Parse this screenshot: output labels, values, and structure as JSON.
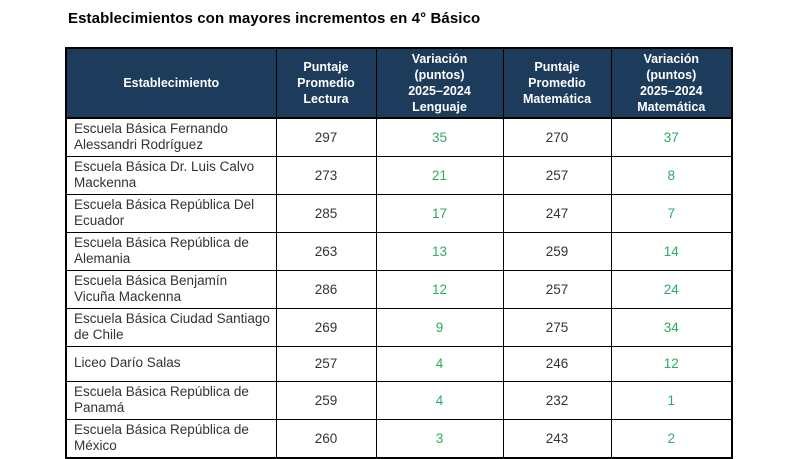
{
  "title": "Establecimientos con mayores incrementos en 4° Básico",
  "colors": {
    "header_bg": "#1d3b5a",
    "header_text": "#ffffff",
    "positive_value": "#2eab63",
    "body_text": "#333333",
    "border": "#000000",
    "background": "#ffffff"
  },
  "chart_data": {
    "type": "table",
    "title": "Establecimientos con mayores incrementos en 4° Básico",
    "columns": [
      "Establecimiento",
      "Puntaje Promedio Lectura",
      "Variación (puntos) 2025–2024 Lenguaje",
      "Puntaje Promedio Matemática",
      "Variación (puntos) 2025–2024 Matemática"
    ],
    "column_display": [
      "Establecimiento",
      "Puntaje\nPromedio\nLectura",
      "Variación\n(puntos)\n2025–2024\nLenguaje",
      "Puntaje\nPromedio\nMatemática",
      "Variación\n(puntos)\n2025–2024\nMatemática"
    ],
    "positive_value_columns": [
      "Variación (puntos) 2025–2024 Lenguaje",
      "Variación (puntos) 2025–2024 Matemática"
    ],
    "rows": [
      {
        "establecimiento": "Escuela Básica Fernando Alessandri Rodríguez",
        "puntaje_lectura": 297,
        "variacion_lenguaje": 35,
        "puntaje_matematica": 270,
        "variacion_matematica": 37
      },
      {
        "establecimiento": "Escuela Básica Dr. Luis Calvo Mackenna",
        "puntaje_lectura": 273,
        "variacion_lenguaje": 21,
        "puntaje_matematica": 257,
        "variacion_matematica": 8
      },
      {
        "establecimiento": "Escuela Básica República Del Ecuador",
        "puntaje_lectura": 285,
        "variacion_lenguaje": 17,
        "puntaje_matematica": 247,
        "variacion_matematica": 7
      },
      {
        "establecimiento": "Escuela Básica República de Alemania",
        "puntaje_lectura": 263,
        "variacion_lenguaje": 13,
        "puntaje_matematica": 259,
        "variacion_matematica": 14
      },
      {
        "establecimiento": "Escuela Básica Benjamín Vicuña Mackenna",
        "puntaje_lectura": 286,
        "variacion_lenguaje": 12,
        "puntaje_matematica": 257,
        "variacion_matematica": 24
      },
      {
        "establecimiento": "Escuela Básica Ciudad Santiago de Chile",
        "puntaje_lectura": 269,
        "variacion_lenguaje": 9,
        "puntaje_matematica": 275,
        "variacion_matematica": 34
      },
      {
        "establecimiento": "Liceo Darío Salas",
        "puntaje_lectura": 257,
        "variacion_lenguaje": 4,
        "puntaje_matematica": 246,
        "variacion_matematica": 12
      },
      {
        "establecimiento": "Escuela Básica República de Panamá",
        "puntaje_lectura": 259,
        "variacion_lenguaje": 4,
        "puntaje_matematica": 232,
        "variacion_matematica": 1
      },
      {
        "establecimiento": "Escuela Básica República de México",
        "puntaje_lectura": 260,
        "variacion_lenguaje": 3,
        "puntaje_matematica": 243,
        "variacion_matematica": 2
      }
    ]
  }
}
